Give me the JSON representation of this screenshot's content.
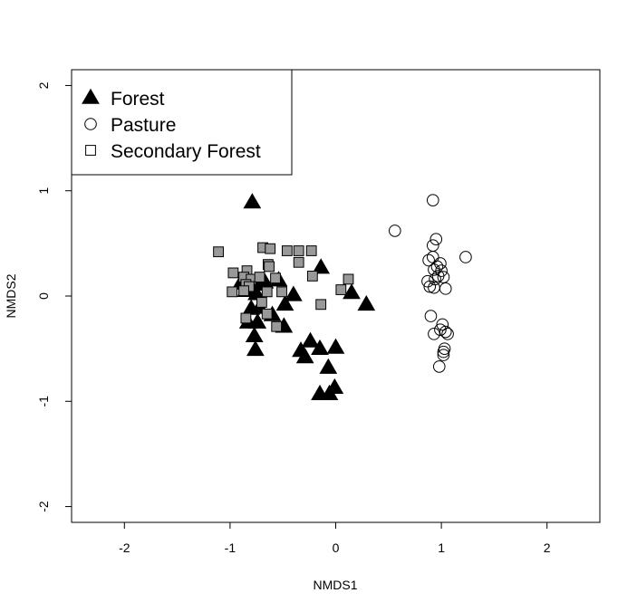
{
  "chart_data": {
    "type": "scatter",
    "title": "",
    "xlabel": "NMDS1",
    "ylabel": "NMDS2",
    "xlim": [
      -2.5,
      2.5
    ],
    "ylim": [
      -2.15,
      2.15
    ],
    "x_ticks": [
      -2,
      -1,
      0,
      1,
      2
    ],
    "y_ticks": [
      -2,
      -1,
      0,
      1,
      2
    ],
    "x_tick_labels": [
      "-2",
      "-1",
      "0",
      "1",
      "2"
    ],
    "y_tick_labels": [
      "-2",
      "-1",
      "0",
      "1",
      "2"
    ],
    "grid": false,
    "legend_position": "top-left",
    "series": [
      {
        "name": "Forest",
        "marker": "triangle",
        "fill": "#000000",
        "stroke": "#000000",
        "points": [
          [
            -0.79,
            0.89
          ],
          [
            -0.9,
            0.12
          ],
          [
            -0.85,
            0.05
          ],
          [
            -0.81,
            0.1
          ],
          [
            -0.75,
            0.02
          ],
          [
            -0.71,
            0.11
          ],
          [
            -0.67,
            0.13
          ],
          [
            -0.8,
            -0.12
          ],
          [
            -0.72,
            -0.11
          ],
          [
            -0.83,
            -0.25
          ],
          [
            -0.74,
            -0.25
          ],
          [
            -0.6,
            -0.18
          ],
          [
            -0.54,
            0.15
          ],
          [
            -0.48,
            -0.08
          ],
          [
            -0.4,
            0.01
          ],
          [
            -0.49,
            -0.29
          ],
          [
            -0.77,
            -0.38
          ],
          [
            -0.76,
            -0.51
          ],
          [
            -0.14,
            0.27
          ],
          [
            0.15,
            0.03
          ],
          [
            0.29,
            -0.08
          ],
          [
            -0.24,
            -0.43
          ],
          [
            -0.33,
            -0.52
          ],
          [
            -0.29,
            -0.58
          ],
          [
            -0.15,
            -0.5
          ],
          [
            0.0,
            -0.49
          ],
          [
            -0.07,
            -0.68
          ],
          [
            -0.15,
            -0.93
          ],
          [
            -0.06,
            -0.93
          ],
          [
            -0.01,
            -0.87
          ]
        ]
      },
      {
        "name": "Pasture",
        "marker": "circle",
        "fill": "none",
        "stroke": "#000000",
        "points": [
          [
            0.92,
            0.91
          ],
          [
            0.56,
            0.62
          ],
          [
            1.23,
            0.37
          ],
          [
            0.95,
            0.54
          ],
          [
            0.92,
            0.48
          ],
          [
            0.88,
            0.34
          ],
          [
            0.92,
            0.37
          ],
          [
            0.96,
            0.28
          ],
          [
            0.99,
            0.31
          ],
          [
            0.93,
            0.25
          ],
          [
            1.0,
            0.24
          ],
          [
            0.97,
            0.19
          ],
          [
            1.02,
            0.18
          ],
          [
            0.94,
            0.16
          ],
          [
            0.87,
            0.14
          ],
          [
            0.89,
            0.09
          ],
          [
            0.93,
            0.08
          ],
          [
            1.04,
            0.07
          ],
          [
            0.9,
            -0.19
          ],
          [
            0.99,
            -0.32
          ],
          [
            1.01,
            -0.27
          ],
          [
            1.04,
            -0.34
          ],
          [
            1.06,
            -0.36
          ],
          [
            0.93,
            -0.36
          ],
          [
            1.03,
            -0.5
          ],
          [
            1.02,
            -0.53
          ],
          [
            1.02,
            -0.56
          ],
          [
            0.98,
            -0.67
          ]
        ]
      },
      {
        "name": "Secondary Forest",
        "marker": "square",
        "fill": "#999999",
        "stroke": "#000000",
        "points": [
          [
            -1.11,
            0.42
          ],
          [
            -0.69,
            0.46
          ],
          [
            -0.62,
            0.45
          ],
          [
            -0.46,
            0.43
          ],
          [
            -0.35,
            0.43
          ],
          [
            -0.23,
            0.43
          ],
          [
            -0.64,
            0.3
          ],
          [
            -0.63,
            0.28
          ],
          [
            -0.35,
            0.32
          ],
          [
            -0.97,
            0.22
          ],
          [
            -0.84,
            0.24
          ],
          [
            -0.87,
            0.18
          ],
          [
            -0.8,
            0.16
          ],
          [
            -0.72,
            0.18
          ],
          [
            -0.57,
            0.17
          ],
          [
            -0.22,
            0.19
          ],
          [
            -0.85,
            0.11
          ],
          [
            -0.82,
            0.09
          ],
          [
            -0.87,
            0.05
          ],
          [
            -0.98,
            0.04
          ],
          [
            -0.65,
            0.04
          ],
          [
            -0.51,
            0.04
          ],
          [
            0.12,
            0.16
          ],
          [
            0.05,
            0.06
          ],
          [
            -0.7,
            -0.06
          ],
          [
            -0.14,
            -0.08
          ],
          [
            -0.65,
            -0.17
          ],
          [
            -0.85,
            -0.21
          ],
          [
            -0.56,
            -0.29
          ]
        ]
      }
    ]
  }
}
